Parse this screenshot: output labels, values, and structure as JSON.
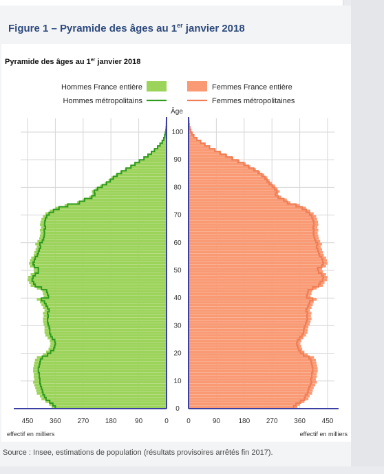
{
  "figure_title": "Figure 1 – Pyramide des âges au 1",
  "figure_title_sup": "er",
  "figure_title_tail": " janvier 2018",
  "source": "Source : Insee, estimations de population (résultats provisoires arrêtés fin 2017).",
  "colors": {
    "men_bar": "#9cd35a",
    "men_line": "#2e9a1e",
    "women_bar": "#f99a74",
    "women_line": "#ef7d55",
    "axis": "#3b3fa0",
    "grid": "#d6d6d6",
    "title": "#2e4a7c"
  },
  "chart_data": {
    "type": "bar",
    "orientation": "horizontal-pyramid",
    "title": "Pyramide des âges au 1",
    "title_sup": "er",
    "title_tail": " janvier 2018",
    "y_axis_label": "Âge",
    "x_unit_label_left": "effectif en milliers",
    "x_unit_label_right": "effectif en milliers",
    "x_ticks": [
      0,
      90,
      180,
      270,
      360,
      450
    ],
    "y_ticks": [
      0,
      10,
      20,
      30,
      40,
      50,
      60,
      70,
      80,
      90,
      100
    ],
    "xlim": [
      0,
      450
    ],
    "ylim": [
      0,
      100
    ],
    "grid": true,
    "legend_placement": "top",
    "series": [
      {
        "name": "Hommes France entière",
        "side": "left",
        "kind": "bar",
        "color_key": "men_bar"
      },
      {
        "name": "Hommes métropolitains",
        "side": "left",
        "kind": "line",
        "color_key": "men_line"
      },
      {
        "name": "Femmes France entière",
        "side": "right",
        "kind": "bar",
        "color_key": "women_bar"
      },
      {
        "name": "Femmes métropolitaines",
        "side": "right",
        "kind": "line",
        "color_key": "women_line"
      }
    ],
    "ages": [
      0,
      1,
      2,
      3,
      4,
      5,
      6,
      7,
      8,
      9,
      10,
      11,
      12,
      13,
      14,
      15,
      16,
      17,
      18,
      19,
      20,
      21,
      22,
      23,
      24,
      25,
      26,
      27,
      28,
      29,
      30,
      31,
      32,
      33,
      34,
      35,
      36,
      37,
      38,
      39,
      40,
      41,
      42,
      43,
      44,
      45,
      46,
      47,
      48,
      49,
      50,
      51,
      52,
      53,
      54,
      55,
      56,
      57,
      58,
      59,
      60,
      61,
      62,
      63,
      64,
      65,
      66,
      67,
      68,
      69,
      70,
      71,
      72,
      73,
      74,
      75,
      76,
      77,
      78,
      79,
      80,
      81,
      82,
      83,
      84,
      85,
      86,
      87,
      88,
      89,
      90,
      91,
      92,
      93,
      94,
      95,
      96,
      97,
      98,
      99,
      100,
      101,
      102,
      103,
      104
    ],
    "men_total": [
      372,
      380,
      392,
      405,
      410,
      420,
      422,
      425,
      428,
      432,
      428,
      430,
      430,
      432,
      432,
      430,
      428,
      426,
      420,
      400,
      390,
      382,
      378,
      376,
      378,
      385,
      392,
      395,
      395,
      395,
      398,
      400,
      400,
      398,
      400,
      395,
      400,
      405,
      410,
      420,
      398,
      400,
      402,
      420,
      440,
      445,
      450,
      448,
      440,
      430,
      430,
      442,
      445,
      442,
      438,
      430,
      428,
      424,
      420,
      425,
      418,
      412,
      410,
      408,
      410,
      406,
      410,
      408,
      405,
      400,
      392,
      378,
      360,
      330,
      290,
      272,
      250,
      240,
      242,
      230,
      215,
      200,
      188,
      178,
      165,
      150,
      135,
      118,
      105,
      90,
      75,
      62,
      50,
      40,
      30,
      22,
      15,
      10,
      6,
      4,
      2,
      1,
      0.5,
      0.3,
      0.1
    ],
    "men_metro": [
      360,
      368,
      378,
      390,
      395,
      400,
      402,
      405,
      408,
      410,
      410,
      412,
      412,
      415,
      415,
      412,
      410,
      408,
      402,
      385,
      375,
      365,
      362,
      360,
      362,
      370,
      375,
      378,
      378,
      380,
      383,
      385,
      385,
      383,
      385,
      380,
      385,
      390,
      395,
      405,
      382,
      385,
      388,
      405,
      425,
      430,
      435,
      432,
      425,
      415,
      415,
      428,
      432,
      428,
      425,
      418,
      415,
      412,
      408,
      410,
      402,
      398,
      396,
      395,
      396,
      392,
      395,
      394,
      392,
      388,
      380,
      366,
      348,
      320,
      282,
      265,
      242,
      232,
      234,
      223,
      208,
      194,
      182,
      172,
      160,
      146,
      131,
      115,
      102,
      88,
      73,
      60,
      49,
      39,
      29,
      21,
      14,
      9,
      6,
      4,
      2,
      1,
      0.5,
      0.3,
      0.1
    ],
    "women_total": [
      352,
      360,
      375,
      388,
      392,
      400,
      402,
      405,
      410,
      415,
      412,
      415,
      415,
      418,
      418,
      416,
      414,
      412,
      406,
      386,
      375,
      368,
      365,
      362,
      365,
      372,
      380,
      385,
      386,
      388,
      392,
      395,
      398,
      396,
      398,
      393,
      398,
      402,
      405,
      415,
      395,
      398,
      400,
      415,
      435,
      440,
      448,
      450,
      445,
      435,
      432,
      445,
      450,
      448,
      445,
      438,
      435,
      432,
      428,
      432,
      426,
      422,
      420,
      418,
      420,
      417,
      420,
      419,
      416,
      413,
      405,
      394,
      380,
      360,
      330,
      318,
      300,
      290,
      295,
      288,
      280,
      270,
      262,
      255,
      245,
      232,
      218,
      200,
      185,
      165,
      145,
      125,
      105,
      88,
      70,
      55,
      40,
      28,
      18,
      12,
      7,
      4,
      2,
      1,
      0.5
    ],
    "women_metro": [
      340,
      348,
      362,
      375,
      378,
      385,
      387,
      390,
      394,
      398,
      396,
      399,
      399,
      402,
      402,
      400,
      398,
      396,
      390,
      372,
      362,
      356,
      353,
      350,
      353,
      360,
      367,
      372,
      373,
      375,
      379,
      382,
      385,
      383,
      385,
      380,
      385,
      389,
      392,
      402,
      382,
      385,
      387,
      402,
      421,
      426,
      434,
      436,
      431,
      421,
      418,
      431,
      436,
      434,
      431,
      424,
      421,
      418,
      414,
      418,
      412,
      408,
      406,
      404,
      406,
      403,
      406,
      405,
      402,
      399,
      392,
      381,
      368,
      348,
      320,
      308,
      290,
      281,
      286,
      279,
      271,
      261,
      254,
      247,
      237,
      225,
      211,
      194,
      179,
      160,
      141,
      121,
      102,
      85,
      68,
      53,
      39,
      27,
      17,
      11,
      7,
      4,
      2,
      1,
      0.5
    ]
  }
}
